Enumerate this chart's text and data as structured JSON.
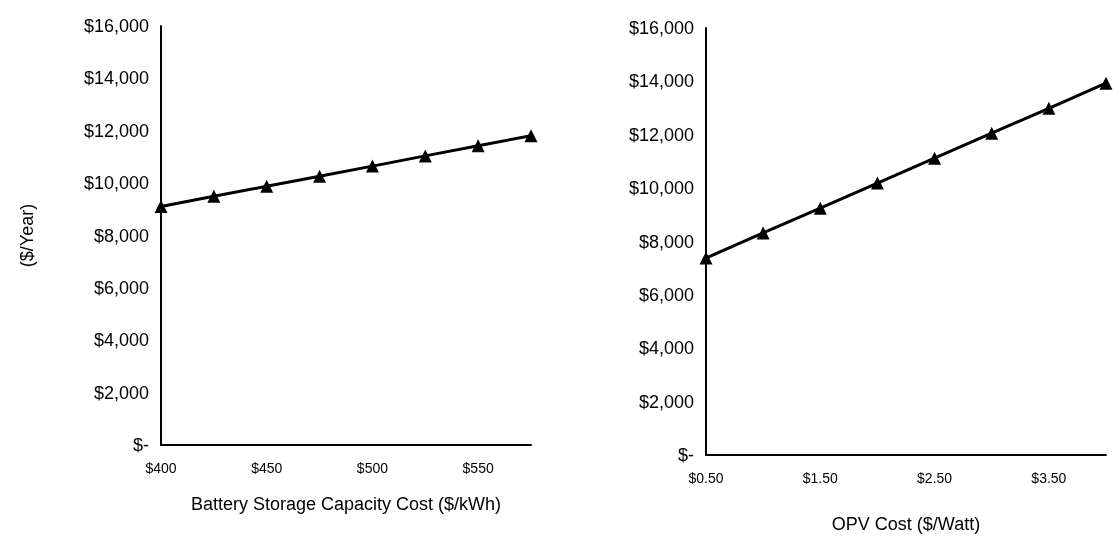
{
  "chart_data": [
    {
      "type": "line",
      "ylabel": "($/Year)",
      "xlabel": "Battery Storage Capacity Cost ($/kWh)",
      "x": [
        400,
        425,
        450,
        475,
        500,
        525,
        550,
        575
      ],
      "series": [
        {
          "color": "#000000",
          "values": [
            9110,
            9500,
            9880,
            10260,
            10650,
            11040,
            11430,
            11810
          ]
        }
      ],
      "xlim": [
        400,
        575
      ],
      "xticks": [
        {
          "value": 400,
          "label": "$400"
        },
        {
          "value": 450,
          "label": "$450"
        },
        {
          "value": 500,
          "label": "$500"
        },
        {
          "value": 550,
          "label": "$550"
        }
      ],
      "ylim": [
        0,
        16000
      ],
      "yticks": [
        {
          "value": 0,
          "label": "$-"
        },
        {
          "value": 2000,
          "label": "$2,000"
        },
        {
          "value": 4000,
          "label": "$4,000"
        },
        {
          "value": 6000,
          "label": "$6,000"
        },
        {
          "value": 8000,
          "label": "$8,000"
        },
        {
          "value": 10000,
          "label": "$10,000"
        },
        {
          "value": 12000,
          "label": "$12,000"
        },
        {
          "value": 14000,
          "label": "$14,000"
        },
        {
          "value": 16000,
          "label": "$16,000"
        }
      ],
      "grid": false,
      "marker": "triangle",
      "line_style": "solid"
    },
    {
      "type": "line",
      "xlabel": "OPV Cost ($/Watt)",
      "x": [
        0.5,
        1.0,
        1.5,
        2.0,
        2.5,
        3.0,
        3.5,
        4.0
      ],
      "series": [
        {
          "color": "#000000",
          "values": [
            7380,
            8320,
            9250,
            10190,
            11120,
            12060,
            12990,
            13930
          ]
        }
      ],
      "xlim": [
        0.5,
        4.0
      ],
      "xticks": [
        {
          "value": 0.5,
          "label": "$0.50"
        },
        {
          "value": 1.5,
          "label": "$1.50"
        },
        {
          "value": 2.5,
          "label": "$2.50"
        },
        {
          "value": 3.5,
          "label": "$3.50"
        }
      ],
      "ylim": [
        0,
        16000
      ],
      "yticks": [
        {
          "value": 0,
          "label": "$-"
        },
        {
          "value": 2000,
          "label": "$2,000"
        },
        {
          "value": 4000,
          "label": "$4,000"
        },
        {
          "value": 6000,
          "label": "$6,000"
        },
        {
          "value": 8000,
          "label": "$8,000"
        },
        {
          "value": 10000,
          "label": "$10,000"
        },
        {
          "value": 12000,
          "label": "$12,000"
        },
        {
          "value": 14000,
          "label": "$14,000"
        },
        {
          "value": 16000,
          "label": "$16,000"
        }
      ],
      "grid": false,
      "marker": "triangle",
      "line_style": "solid"
    }
  ]
}
